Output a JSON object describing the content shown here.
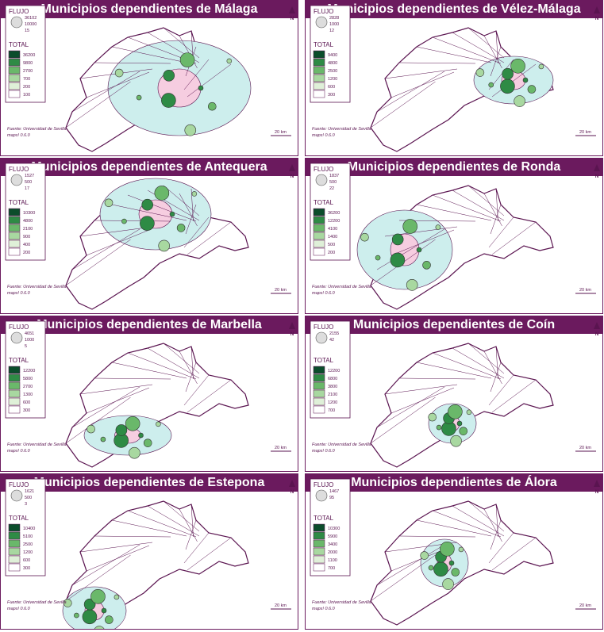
{
  "panels": [
    {
      "title": "Municipios dependientes de Málaga",
      "flujo_label": "FLUJO",
      "flujo_values": [
        36102,
        10000,
        15
      ],
      "total_label": "TOTAL",
      "total_classes": [
        36200,
        9800,
        2700,
        700,
        200,
        100
      ],
      "source": "Fuente: Universidad de Sevilla",
      "software": "maps! 0.6.0",
      "scale": "20 km",
      "north": "N"
    },
    {
      "title": "Municipios dependientes de Vélez-Málaga",
      "flujo_label": "FLUJO",
      "flujo_values": [
        2828,
        1000,
        12
      ],
      "total_label": "TOTAL",
      "total_classes": [
        9400,
        4800,
        2500,
        1200,
        600,
        300
      ],
      "source": "Fuente: Universidad de Sevilla",
      "software": "maps! 0.6.0",
      "scale": "20 km",
      "north": "N"
    },
    {
      "title": "Municipios dependientes de Antequera",
      "flujo_label": "FLUJO",
      "flujo_values": [
        1527,
        500,
        17
      ],
      "total_label": "TOTAL",
      "total_classes": [
        10300,
        4800,
        2100,
        900,
        400,
        200
      ],
      "source": "Fuente: Universidad de Sevilla",
      "software": "maps! 0.6.0",
      "scale": "20 km",
      "north": "N"
    },
    {
      "title": "Municipios dependientes de Ronda",
      "flujo_label": "FLUJO",
      "flujo_values": [
        1837,
        500,
        22
      ],
      "total_label": "TOTAL",
      "total_classes": [
        36200,
        12200,
        4100,
        1400,
        500,
        200
      ],
      "source": "Fuente: Universidad de Sevilla",
      "software": "maps! 0.6.0",
      "scale": "20 km",
      "north": "N"
    },
    {
      "title": "Municipios dependientes de Marbella",
      "flujo_label": "FLUJO",
      "flujo_values": [
        4651,
        1000,
        5
      ],
      "total_label": "TOTAL",
      "total_classes": [
        12200,
        5800,
        2700,
        1300,
        600,
        300
      ],
      "source": "Fuente: Universidad de Sevilla",
      "software": "maps! 0.6.0",
      "scale": "20 km",
      "north": "N"
    },
    {
      "title": "Municipios dependientes de Coín",
      "flujo_label": "FLUJO",
      "flujo_values": [
        2155,
        42
      ],
      "total_label": "TOTAL",
      "total_classes": [
        12200,
        6800,
        3800,
        2100,
        1200,
        700
      ],
      "source": "Fuente: Universidad de Sevilla",
      "software": "maps! 0.6.0",
      "scale": "20 km",
      "north": "N"
    },
    {
      "title": "Municipios dependientes de Estepona",
      "flujo_label": "FLUJO",
      "flujo_values": [
        1621,
        500,
        3
      ],
      "total_label": "TOTAL",
      "total_classes": [
        10400,
        5100,
        2500,
        1200,
        600,
        300
      ],
      "source": "Fuente: Universidad de Sevilla",
      "software": "maps! 0.6.0",
      "scale": "20 km",
      "north": "N"
    },
    {
      "title": "Municipios dependientes de Álora",
      "flujo_label": "FLUJO",
      "flujo_values": [
        1467,
        95
      ],
      "total_label": "TOTAL",
      "total_classes": [
        10300,
        5900,
        3400,
        2000,
        1100,
        700
      ],
      "source": "Fuente: Universidad de Sevilla",
      "software": "maps! 0.6.0",
      "scale": "20 km",
      "north": "N"
    }
  ]
}
